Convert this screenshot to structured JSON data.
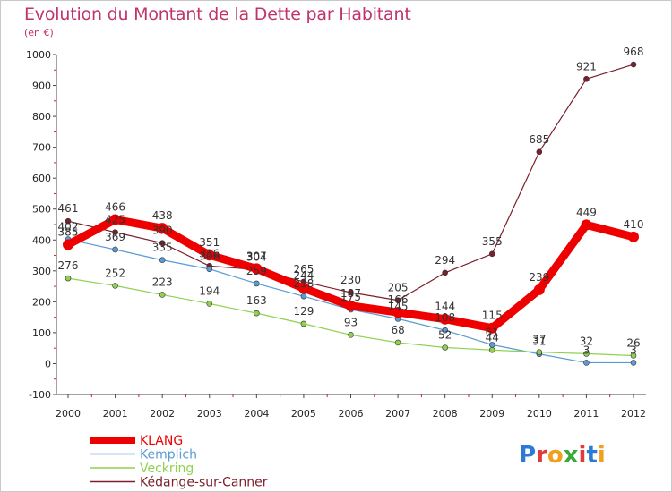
{
  "title": "Evolution du Montant de la Dette par Habitant",
  "subtitle": "(en €)",
  "logo": "Proxiti",
  "chart_data": {
    "type": "line",
    "title": "Evolution du Montant de la Dette par Habitant",
    "subtitle": "(en €)",
    "xlabel": "",
    "ylabel": "",
    "x": [
      2000,
      2001,
      2002,
      2003,
      2004,
      2005,
      2006,
      2007,
      2008,
      2009,
      2010,
      2011,
      2012
    ],
    "ylim": [
      -100,
      1000
    ],
    "yticks": [
      -100,
      0,
      100,
      200,
      300,
      400,
      500,
      600,
      700,
      800,
      900,
      1000
    ],
    "grid": false,
    "legend_position": "bottom-left",
    "series": [
      {
        "name": "KLANG",
        "color": "#ee0000",
        "values": [
          385,
          466,
          438,
          351,
          307,
          244,
          187,
          166,
          144,
          115,
          239,
          449,
          410
        ]
      },
      {
        "name": "Kemplich",
        "color": "#5a9bd5",
        "values": [
          402,
          369,
          335,
          306,
          259,
          218,
          175,
          145,
          108,
          61,
          31,
          3,
          3
        ]
      },
      {
        "name": "Veckring",
        "color": "#8fd14f",
        "values": [
          276,
          252,
          223,
          194,
          163,
          129,
          93,
          68,
          52,
          44,
          37,
          32,
          26
        ]
      },
      {
        "name": "Kédange-sur-Canner",
        "color": "#7a1f2b",
        "values": [
          461,
          425,
          390,
          316,
          304,
          265,
          230,
          205,
          294,
          355,
          685,
          921,
          968
        ]
      }
    ]
  }
}
